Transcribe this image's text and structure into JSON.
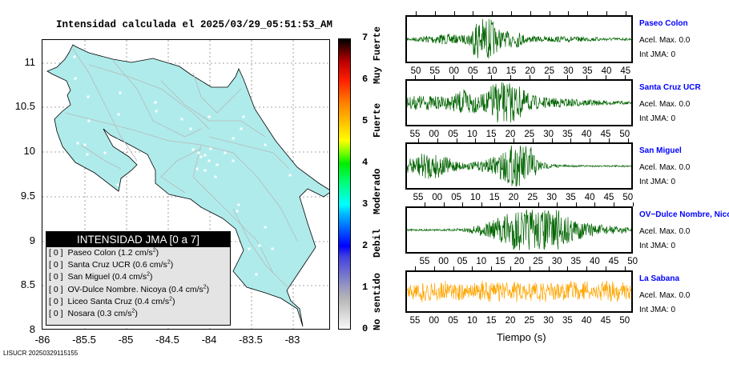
{
  "map": {
    "title": "Intensidad calculada el 2025/03/29_05:51:53_AM",
    "y_ticks": [
      "11",
      "10.5",
      "10",
      "9.5",
      "9",
      "8.5",
      "8"
    ],
    "x_ticks": [
      "-86",
      "-85.5",
      "-85",
      "-84.5",
      "-84",
      "-83.5",
      "-83"
    ],
    "land_color": "#afebeb",
    "road_color": "#b8b8b8"
  },
  "legend": {
    "title": "INTENSIDAD JMA [0 a 7]",
    "items": [
      {
        "jma": "[ 0 ]",
        "name": "Paseo Colon (1.2 cm/s",
        "close": ")"
      },
      {
        "jma": "[ 0 ]",
        "name": "Santa Cruz UCR (0.6 cm/s",
        "close": ")"
      },
      {
        "jma": "[ 0 ]",
        "name": "San Miguel (0.4 cm/s",
        "close": ")"
      },
      {
        "jma": "[ 0 ]",
        "name": "OV-Dulce Nombre. Nicoya (0.4 cm/s",
        "close": ")"
      },
      {
        "jma": "[ 0 ]",
        "name": "Liceo Santa Cruz (0.4 cm/s",
        "close": ")"
      },
      {
        "jma": "[ 0 ]",
        "name": "Nosara (0.3 cm/s",
        "close": ")"
      }
    ],
    "exp": "2"
  },
  "colorbar": {
    "ticks": [
      "0",
      "1",
      "2",
      "3",
      "4",
      "5",
      "6",
      "7"
    ],
    "levels": [
      "No sentido",
      "Debil",
      "Moderado",
      "Fuerte",
      "Muy Fuerte"
    ]
  },
  "stations": [
    {
      "name": "Paseo Colon",
      "acel": "Acel. Max. 0.0",
      "jma": "Int JMA: 0",
      "color": "#006400",
      "ticks": [
        "50",
        "55",
        "00",
        "05",
        "10",
        "15",
        "20",
        "25",
        "30",
        "35",
        "40",
        "45"
      ]
    },
    {
      "name": "Santa Cruz UCR",
      "acel": "Acel. Max. 0.0",
      "jma": "Int JMA: 0",
      "color": "#006400",
      "ticks": [
        "55",
        "00",
        "05",
        "10",
        "15",
        "20",
        "25",
        "30",
        "35",
        "40",
        "45",
        "50"
      ]
    },
    {
      "name": "San Miguel",
      "acel": "Acel. Max. 0.0",
      "jma": "Int JMA: 0",
      "color": "#006400",
      "ticks": [
        "55",
        "00",
        "05",
        "10",
        "15",
        "20",
        "25",
        "30",
        "35",
        "40",
        "45",
        "50"
      ]
    },
    {
      "name": "OV−Dulce Nombre, Nicoya",
      "acel": "Acel. Max. 0.0",
      "jma": "Int JMA: 0",
      "color": "#006400",
      "ticks": [
        "55",
        "00",
        "05",
        "10",
        "15",
        "20",
        "25",
        "30",
        "35",
        "40",
        "45",
        "50"
      ]
    },
    {
      "name": "La Sabana",
      "acel": "Acel. Max. 0.0",
      "jma": "Int JMA: 0",
      "color": "#ffa500",
      "ticks": [
        "55",
        "00",
        "05",
        "10",
        "15",
        "20",
        "25",
        "30",
        "35",
        "40",
        "45",
        "50"
      ]
    }
  ],
  "xlabel": "Tiempo (s)",
  "footer": "LISUCR 20250329115155"
}
